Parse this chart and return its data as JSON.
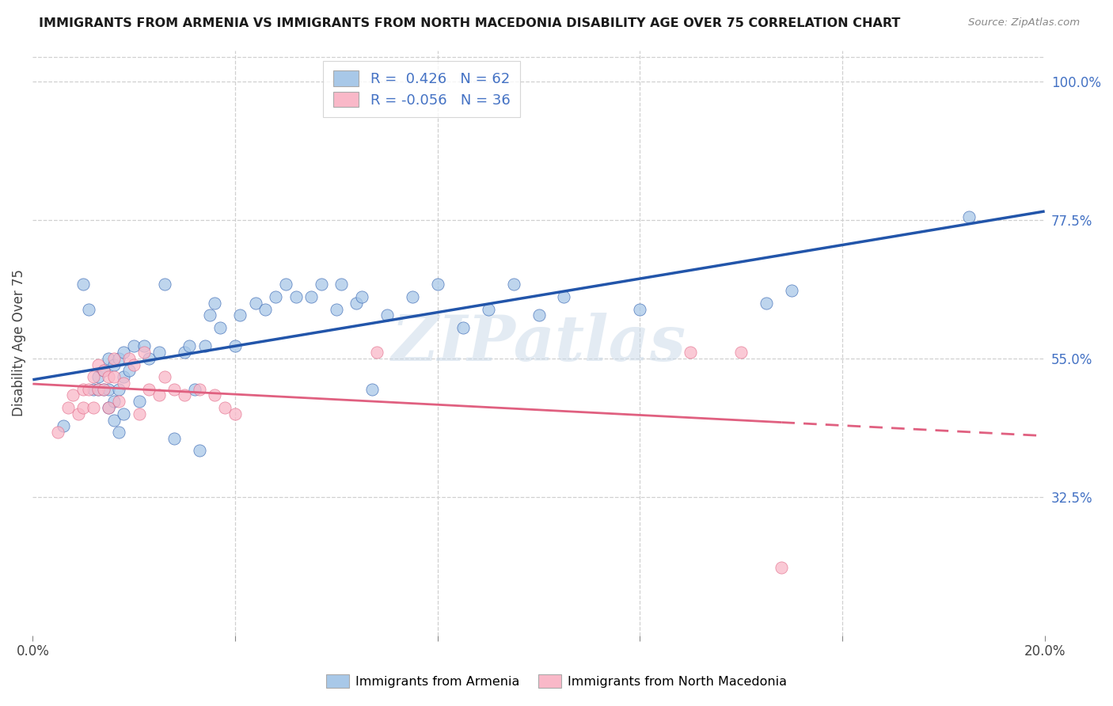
{
  "title": "IMMIGRANTS FROM ARMENIA VS IMMIGRANTS FROM NORTH MACEDONIA DISABILITY AGE OVER 75 CORRELATION CHART",
  "source": "Source: ZipAtlas.com",
  "ylabel": "Disability Age Over 75",
  "right_yticks": [
    "100.0%",
    "77.5%",
    "55.0%",
    "32.5%"
  ],
  "right_ytick_vals": [
    1.0,
    0.775,
    0.55,
    0.325
  ],
  "xlim": [
    0.0,
    0.2
  ],
  "ylim": [
    0.1,
    1.05
  ],
  "armenia_R": 0.426,
  "armenia_N": 62,
  "macedonia_R": -0.056,
  "macedonia_N": 36,
  "armenia_color": "#a8c8e8",
  "macedonia_color": "#f9b8c8",
  "armenia_line_color": "#2255aa",
  "macedonia_line_color": "#e06080",
  "watermark": "ZIPatlas",
  "armenia_x": [
    0.006,
    0.01,
    0.011,
    0.012,
    0.013,
    0.013,
    0.014,
    0.014,
    0.015,
    0.015,
    0.015,
    0.016,
    0.016,
    0.016,
    0.017,
    0.017,
    0.017,
    0.018,
    0.018,
    0.018,
    0.019,
    0.02,
    0.021,
    0.022,
    0.023,
    0.025,
    0.026,
    0.028,
    0.03,
    0.031,
    0.032,
    0.033,
    0.034,
    0.035,
    0.036,
    0.037,
    0.04,
    0.041,
    0.044,
    0.046,
    0.048,
    0.05,
    0.052,
    0.055,
    0.057,
    0.06,
    0.061,
    0.064,
    0.065,
    0.067,
    0.07,
    0.075,
    0.08,
    0.085,
    0.09,
    0.095,
    0.1,
    0.105,
    0.12,
    0.145,
    0.15,
    0.185
  ],
  "armenia_y": [
    0.44,
    0.67,
    0.63,
    0.5,
    0.5,
    0.52,
    0.5,
    0.53,
    0.47,
    0.5,
    0.55,
    0.45,
    0.48,
    0.54,
    0.43,
    0.5,
    0.55,
    0.46,
    0.52,
    0.56,
    0.53,
    0.57,
    0.48,
    0.57,
    0.55,
    0.56,
    0.67,
    0.42,
    0.56,
    0.57,
    0.5,
    0.4,
    0.57,
    0.62,
    0.64,
    0.6,
    0.57,
    0.62,
    0.64,
    0.63,
    0.65,
    0.67,
    0.65,
    0.65,
    0.67,
    0.63,
    0.67,
    0.64,
    0.65,
    0.5,
    0.62,
    0.65,
    0.67,
    0.6,
    0.63,
    0.67,
    0.62,
    0.65,
    0.63,
    0.64,
    0.66,
    0.78
  ],
  "macedonia_x": [
    0.005,
    0.007,
    0.008,
    0.009,
    0.01,
    0.01,
    0.011,
    0.012,
    0.012,
    0.013,
    0.013,
    0.014,
    0.014,
    0.015,
    0.015,
    0.016,
    0.016,
    0.017,
    0.018,
    0.019,
    0.02,
    0.021,
    0.022,
    0.023,
    0.025,
    0.026,
    0.028,
    0.03,
    0.033,
    0.036,
    0.038,
    0.04,
    0.068,
    0.13,
    0.14,
    0.148
  ],
  "macedonia_y": [
    0.43,
    0.47,
    0.49,
    0.46,
    0.47,
    0.5,
    0.5,
    0.47,
    0.52,
    0.54,
    0.5,
    0.5,
    0.53,
    0.47,
    0.52,
    0.52,
    0.55,
    0.48,
    0.51,
    0.55,
    0.54,
    0.46,
    0.56,
    0.5,
    0.49,
    0.52,
    0.5,
    0.49,
    0.5,
    0.49,
    0.47,
    0.46,
    0.56,
    0.56,
    0.56,
    0.21
  ]
}
